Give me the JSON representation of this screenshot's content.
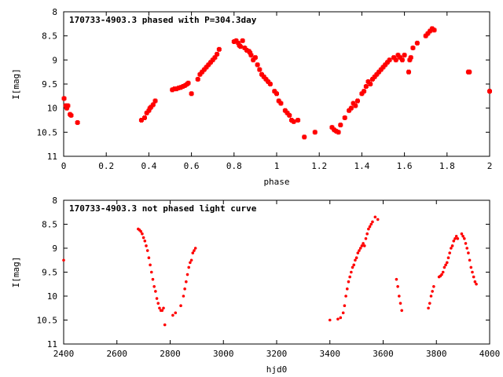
{
  "chart_data": [
    {
      "type": "scatter",
      "title": "170733-4903.3 phased with P=304.3day",
      "xlabel": "phase",
      "ylabel": "I[mag]",
      "xlim": [
        0,
        2
      ],
      "ylim": [
        8,
        11
      ],
      "y_inverted": true,
      "xticks": [
        "0",
        "0.2",
        "0.4",
        "0.6",
        "0.8",
        "1",
        "1.2",
        "1.4",
        "1.6",
        "1.8",
        "2"
      ],
      "xtick_values": [
        0,
        0.2,
        0.4,
        0.6,
        0.8,
        1,
        1.2,
        1.4,
        1.6,
        1.8,
        2
      ],
      "yticks": [
        "8",
        "8.5",
        "9",
        "9.5",
        "10",
        "10.5",
        "11"
      ],
      "ytick_values": [
        8,
        8.5,
        9,
        9.5,
        10,
        10.5,
        11
      ],
      "marker": "cross",
      "color": "#ff0000",
      "grid": false,
      "x": [
        0.002,
        0.01,
        0.015,
        0.02,
        0.03,
        0.035,
        0.065,
        0.365,
        0.38,
        0.39,
        0.4,
        0.405,
        0.41,
        0.42,
        0.43,
        0.51,
        0.52,
        0.53,
        0.54,
        0.55,
        0.56,
        0.57,
        0.58,
        0.585,
        0.6,
        0.63,
        0.64,
        0.65,
        0.66,
        0.67,
        0.68,
        0.69,
        0.7,
        0.71,
        0.72,
        0.73,
        0.8,
        0.81,
        0.82,
        0.825,
        0.83,
        0.84,
        0.85,
        0.86,
        0.87,
        0.875,
        0.88,
        0.89,
        0.9,
        0.91,
        0.92,
        0.93,
        0.94,
        0.95,
        0.96,
        0.97,
        0.99,
        1.0,
        1.01,
        1.02,
        1.04,
        1.05,
        1.06,
        1.07,
        1.08,
        1.1,
        1.13,
        1.18,
        1.26,
        1.27,
        1.28,
        1.29,
        1.3,
        1.32,
        1.34,
        1.35,
        1.36,
        1.37,
        1.38,
        1.4,
        1.41,
        1.42,
        1.43,
        1.44,
        1.45,
        1.46,
        1.47,
        1.48,
        1.49,
        1.5,
        1.51,
        1.52,
        1.53,
        1.55,
        1.56,
        1.57,
        1.58,
        1.59,
        1.6,
        1.62,
        1.625,
        1.63,
        1.64,
        1.66,
        1.7,
        1.71,
        1.72,
        1.73,
        1.74,
        1.9,
        1.905,
        2.0
      ],
      "y": [
        9.8,
        9.95,
        10.0,
        9.95,
        10.13,
        10.15,
        10.3,
        10.25,
        10.2,
        10.1,
        10.05,
        10.0,
        9.98,
        9.93,
        9.85,
        9.62,
        9.6,
        9.6,
        9.58,
        9.57,
        9.55,
        9.53,
        9.5,
        9.48,
        9.7,
        9.4,
        9.3,
        9.25,
        9.2,
        9.15,
        9.1,
        9.05,
        9.0,
        8.95,
        8.88,
        8.78,
        8.62,
        8.6,
        8.65,
        8.7,
        8.72,
        8.6,
        8.75,
        8.8,
        8.82,
        8.85,
        8.9,
        9.0,
        8.95,
        9.1,
        9.2,
        9.3,
        9.35,
        9.4,
        9.45,
        9.5,
        9.65,
        9.7,
        9.85,
        9.9,
        10.05,
        10.1,
        10.15,
        10.25,
        10.28,
        10.25,
        10.6,
        10.5,
        10.4,
        10.45,
        10.48,
        10.5,
        10.35,
        10.2,
        10.05,
        10.0,
        9.9,
        9.95,
        9.85,
        9.7,
        9.65,
        9.55,
        9.45,
        9.5,
        9.4,
        9.35,
        9.3,
        9.25,
        9.2,
        9.15,
        9.1,
        9.05,
        9.0,
        8.95,
        9.0,
        8.9,
        8.95,
        9.0,
        8.9,
        9.25,
        9.0,
        8.95,
        8.75,
        8.65,
        8.5,
        8.45,
        8.4,
        8.35,
        8.38,
        9.25,
        9.25,
        9.65
      ]
    },
    {
      "type": "scatter",
      "title": "170733-4903.3 not phased light curve",
      "xlabel": "hjd0",
      "ylabel": "I[mag]",
      "xlim": [
        2400,
        4000
      ],
      "ylim": [
        8,
        11
      ],
      "y_inverted": true,
      "xticks": [
        "2400",
        "2600",
        "2800",
        "3000",
        "3200",
        "3400",
        "3600",
        "3800",
        "4000"
      ],
      "xtick_values": [
        2400,
        2600,
        2800,
        3000,
        3200,
        3400,
        3600,
        3800,
        4000
      ],
      "yticks": [
        "8",
        "8.5",
        "9",
        "9.5",
        "10",
        "10.5",
        "11"
      ],
      "ytick_values": [
        8,
        8.5,
        9,
        9.5,
        10,
        10.5,
        11
      ],
      "marker": "dot",
      "color": "#ff0000",
      "grid": false,
      "x": [
        2400,
        2680,
        2685,
        2690,
        2695,
        2700,
        2705,
        2710,
        2715,
        2720,
        2725,
        2730,
        2735,
        2740,
        2745,
        2750,
        2755,
        2760,
        2765,
        2770,
        2775,
        2780,
        2810,
        2820,
        2840,
        2850,
        2855,
        2860,
        2865,
        2870,
        2875,
        2880,
        2885,
        2890,
        2895,
        3400,
        3430,
        3440,
        3450,
        3455,
        3460,
        3465,
        3470,
        3475,
        3480,
        3485,
        3490,
        3495,
        3500,
        3505,
        3510,
        3515,
        3520,
        3525,
        3530,
        3535,
        3540,
        3545,
        3550,
        3555,
        3560,
        3570,
        3580,
        3650,
        3655,
        3660,
        3665,
        3670,
        3770,
        3775,
        3780,
        3785,
        3790,
        3810,
        3815,
        3820,
        3825,
        3830,
        3835,
        3840,
        3845,
        3850,
        3855,
        3860,
        3865,
        3870,
        3875,
        3880,
        3895,
        3900,
        3905,
        3910,
        3915,
        3920,
        3925,
        3930,
        3935,
        3940,
        3945,
        3950
      ],
      "y": [
        9.25,
        8.6,
        8.62,
        8.65,
        8.7,
        8.78,
        8.85,
        8.95,
        9.05,
        9.2,
        9.35,
        9.5,
        9.65,
        9.8,
        9.9,
        10.05,
        10.15,
        10.25,
        10.3,
        10.3,
        10.25,
        10.6,
        10.4,
        10.35,
        10.2,
        10.0,
        9.85,
        9.7,
        9.55,
        9.4,
        9.3,
        9.25,
        9.1,
        9.05,
        9.0,
        10.5,
        10.48,
        10.45,
        10.35,
        10.2,
        10.0,
        9.85,
        9.7,
        9.6,
        9.5,
        9.4,
        9.35,
        9.25,
        9.2,
        9.1,
        9.05,
        9.0,
        8.95,
        8.9,
        8.95,
        8.8,
        8.7,
        8.6,
        8.55,
        8.5,
        8.45,
        8.35,
        8.4,
        9.65,
        9.8,
        10.0,
        10.15,
        10.3,
        10.25,
        10.15,
        10.0,
        9.9,
        9.8,
        9.6,
        9.58,
        9.55,
        9.5,
        9.4,
        9.35,
        9.3,
        9.2,
        9.1,
        9.0,
        8.95,
        8.85,
        8.8,
        8.75,
        8.8,
        8.7,
        8.75,
        8.8,
        8.9,
        9.0,
        9.1,
        9.25,
        9.4,
        9.5,
        9.6,
        9.7,
        9.75
      ]
    }
  ]
}
